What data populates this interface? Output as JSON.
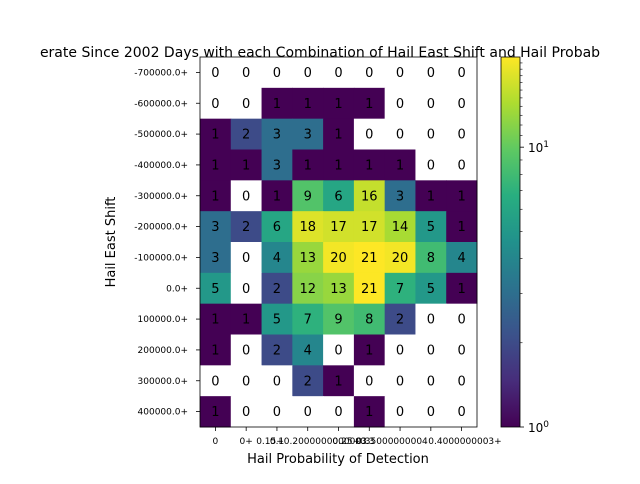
{
  "chart_data": {
    "type": "heatmap",
    "title": "erate Since 2002 Days with each Combination of Hail East Shift and Hail Probab",
    "xlabel": "Hail Probability of Detection",
    "ylabel": "Hail East Shift",
    "x_categories": [
      "0",
      "0+",
      "0.1+",
      "0.15+",
      "0.2000000000003+",
      "0.25+",
      "0.3",
      "0.35000000004",
      "0.4000000003+"
    ],
    "x_tick_display": [
      "0",
      "0+",
      "0.1",
      "0.15+0.2000000000003",
      "0.25+0.3",
      "0.35000000004",
      "0.4000000003+"
    ],
    "y_categories": [
      "-700000.0+",
      "-600000.0+",
      "-500000.0+",
      "-400000.0+",
      "-300000.0+",
      "-200000.0+",
      "-100000.0+",
      "0.0+",
      "100000.0+",
      "200000.0+",
      "300000.0+",
      "400000.0+"
    ],
    "values": [
      [
        0,
        0,
        0,
        0,
        0,
        0,
        0,
        0,
        0
      ],
      [
        0,
        0,
        1,
        1,
        1,
        1,
        0,
        0,
        0
      ],
      [
        1,
        2,
        3,
        3,
        1,
        0,
        0,
        0,
        0
      ],
      [
        1,
        1,
        3,
        1,
        1,
        1,
        1,
        0,
        0
      ],
      [
        1,
        0,
        1,
        9,
        6,
        16,
        3,
        1,
        1
      ],
      [
        3,
        2,
        6,
        18,
        17,
        17,
        14,
        5,
        1
      ],
      [
        3,
        0,
        4,
        13,
        20,
        21,
        20,
        8,
        4
      ],
      [
        5,
        0,
        2,
        12,
        13,
        21,
        7,
        5,
        1
      ],
      [
        1,
        1,
        5,
        7,
        9,
        8,
        2,
        0,
        0
      ],
      [
        1,
        0,
        2,
        4,
        0,
        1,
        0,
        0,
        0
      ],
      [
        0,
        0,
        0,
        2,
        1,
        0,
        0,
        0,
        0
      ],
      [
        1,
        0,
        0,
        0,
        0,
        1,
        0,
        0,
        0
      ]
    ],
    "colorbar": {
      "scale": "log",
      "colormap": "viridis",
      "range": [
        1,
        21
      ],
      "tick_labels": [
        "10^0",
        "10^1"
      ],
      "tick_values": [
        1,
        10
      ]
    },
    "zero_color": "#ffffff",
    "grid": false
  }
}
